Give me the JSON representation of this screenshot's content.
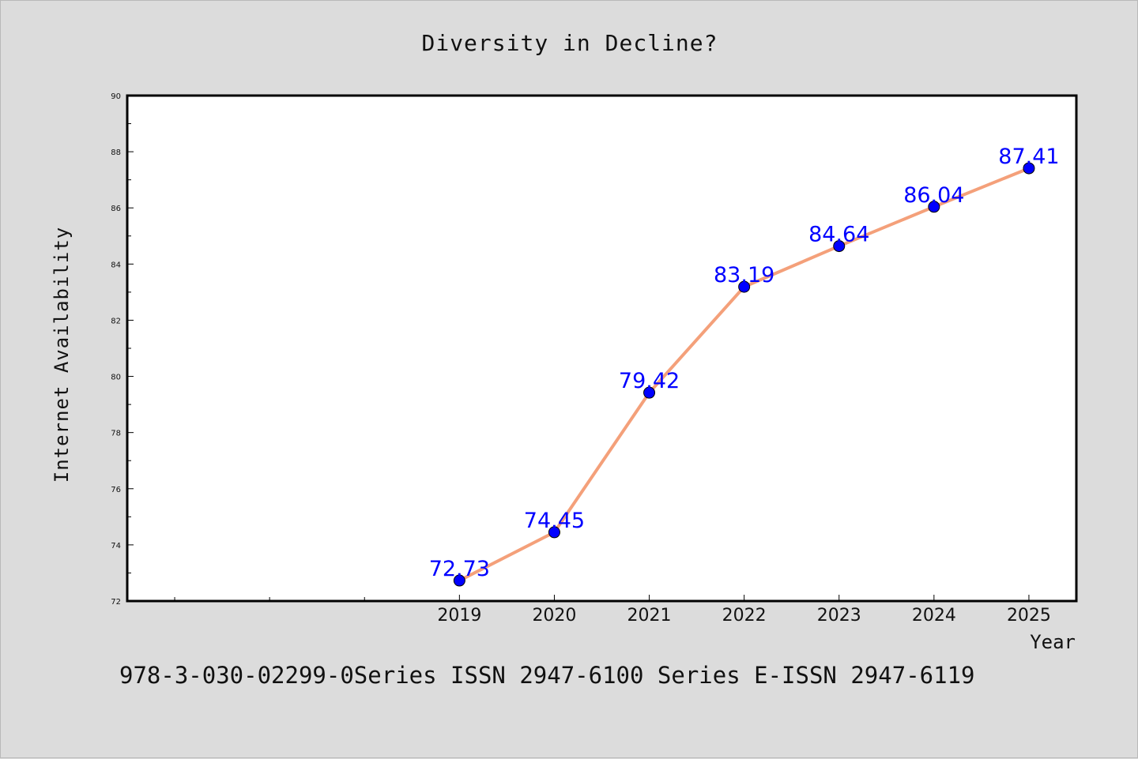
{
  "chart_data": {
    "type": "line",
    "title": "Diversity in Decline?",
    "xlabel": "Year",
    "ylabel": "Internet Availability",
    "x": [
      "2019",
      "2020",
      "2021",
      "2022",
      "2023",
      "2024",
      "2025"
    ],
    "series": [
      {
        "values": [
          72.73,
          74.45,
          79.42,
          83.19,
          84.64,
          86.04,
          87.41
        ],
        "data_labels": [
          "72.73",
          "74.45",
          "79.42",
          "83.19",
          "84.64",
          "86.04",
          "87.41"
        ],
        "line_color": "#f4a07a",
        "marker_color": "#0000ff"
      }
    ],
    "yticks": [
      "72",
      "74",
      "76",
      "78",
      "80",
      "82",
      "84",
      "86",
      "88",
      "90"
    ],
    "ylim": [
      72,
      90
    ],
    "xlim": [
      2015.5,
      2025.5
    ],
    "grid": false,
    "legend": "none"
  },
  "footer_text": "978-3-030-02299-0Series ISSN 2947-6100 Series E-ISSN 2947-6119",
  "colors": {
    "background": "#dcdcdc",
    "plot_background": "#ffffff",
    "axis": "#000000",
    "label_text": "#0000ff"
  }
}
